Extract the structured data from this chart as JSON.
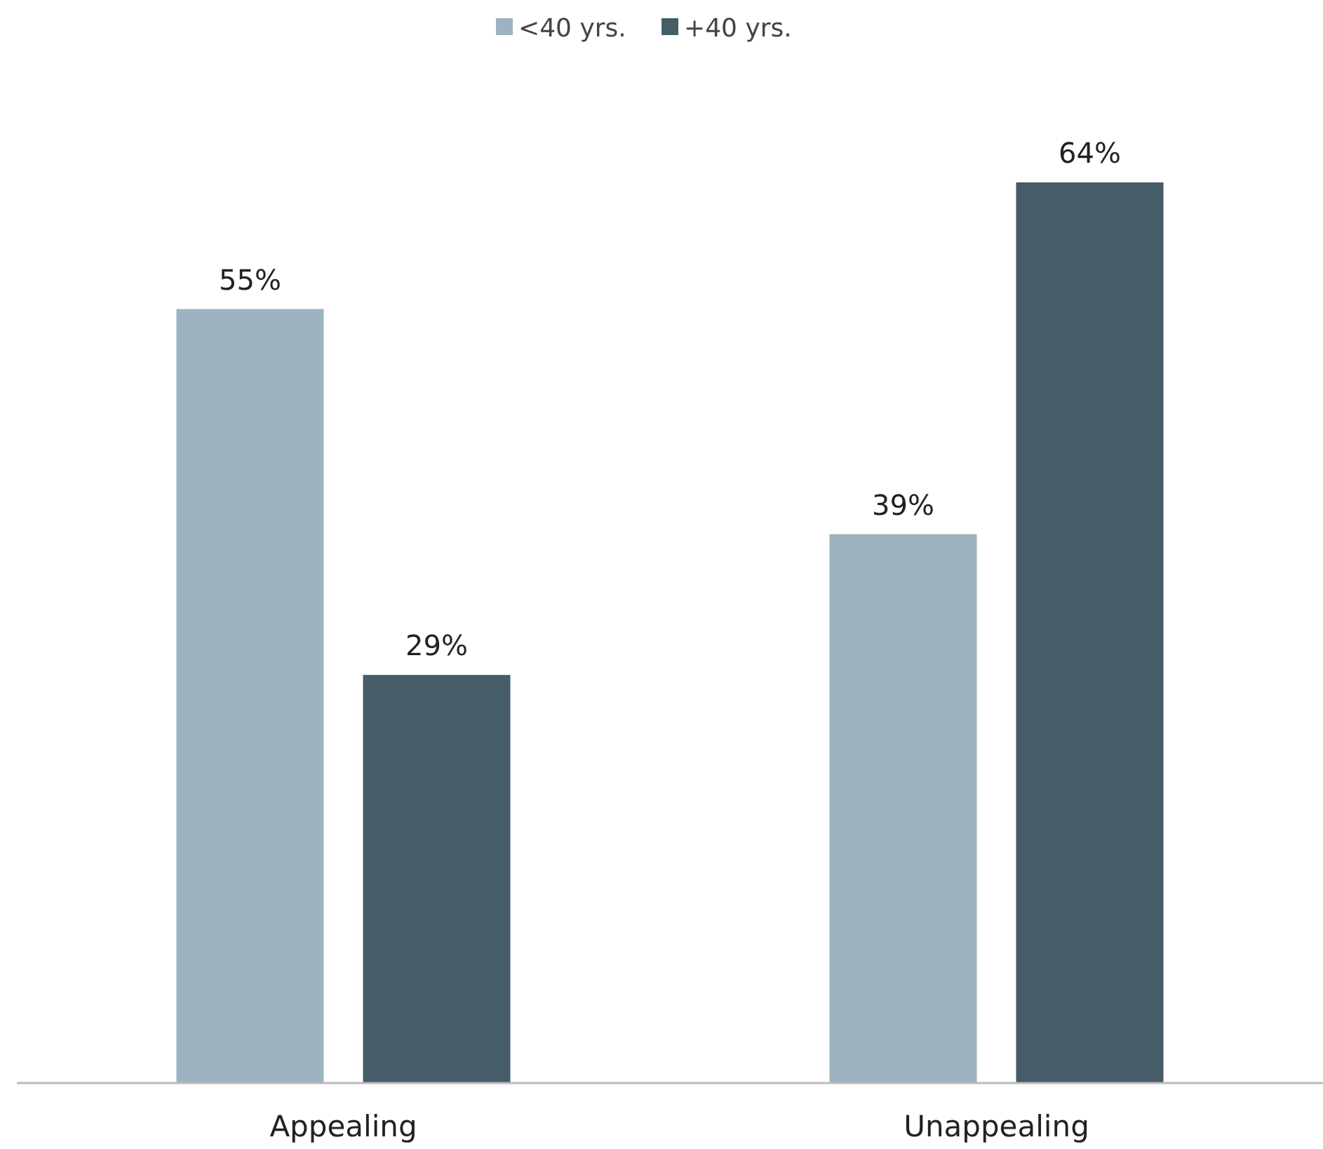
{
  "chart_data": {
    "type": "bar",
    "categories": [
      "Appealing",
      "Unappealing"
    ],
    "series": [
      {
        "name": "<40 yrs.",
        "color": "#9db3bf",
        "values": [
          55,
          39
        ],
        "value_labels": [
          "55%",
          "39%"
        ]
      },
      {
        "name": "+40 yrs.",
        "color": "#465c68",
        "values": [
          29,
          64
        ],
        "value_labels": [
          "29%",
          "64%"
        ]
      }
    ],
    "tick_labels": "x",
    "legend": "top"
  }
}
